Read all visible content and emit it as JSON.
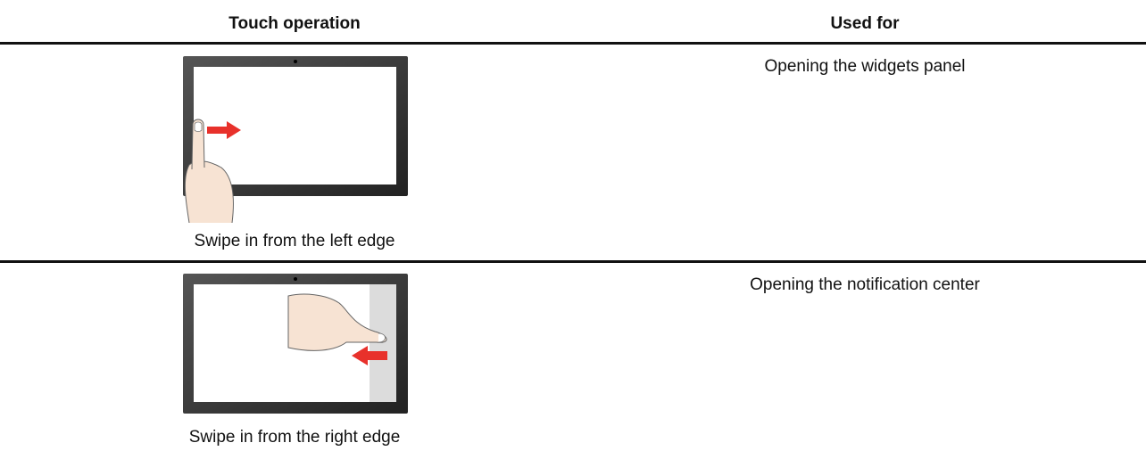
{
  "table": {
    "headers": [
      "Touch operation",
      "Used for"
    ],
    "rows": [
      [
        "Swipe in from the left edge",
        "Opening the widgets panel"
      ],
      [
        "Swipe in from the right edge",
        "Opening the notification center"
      ]
    ]
  }
}
